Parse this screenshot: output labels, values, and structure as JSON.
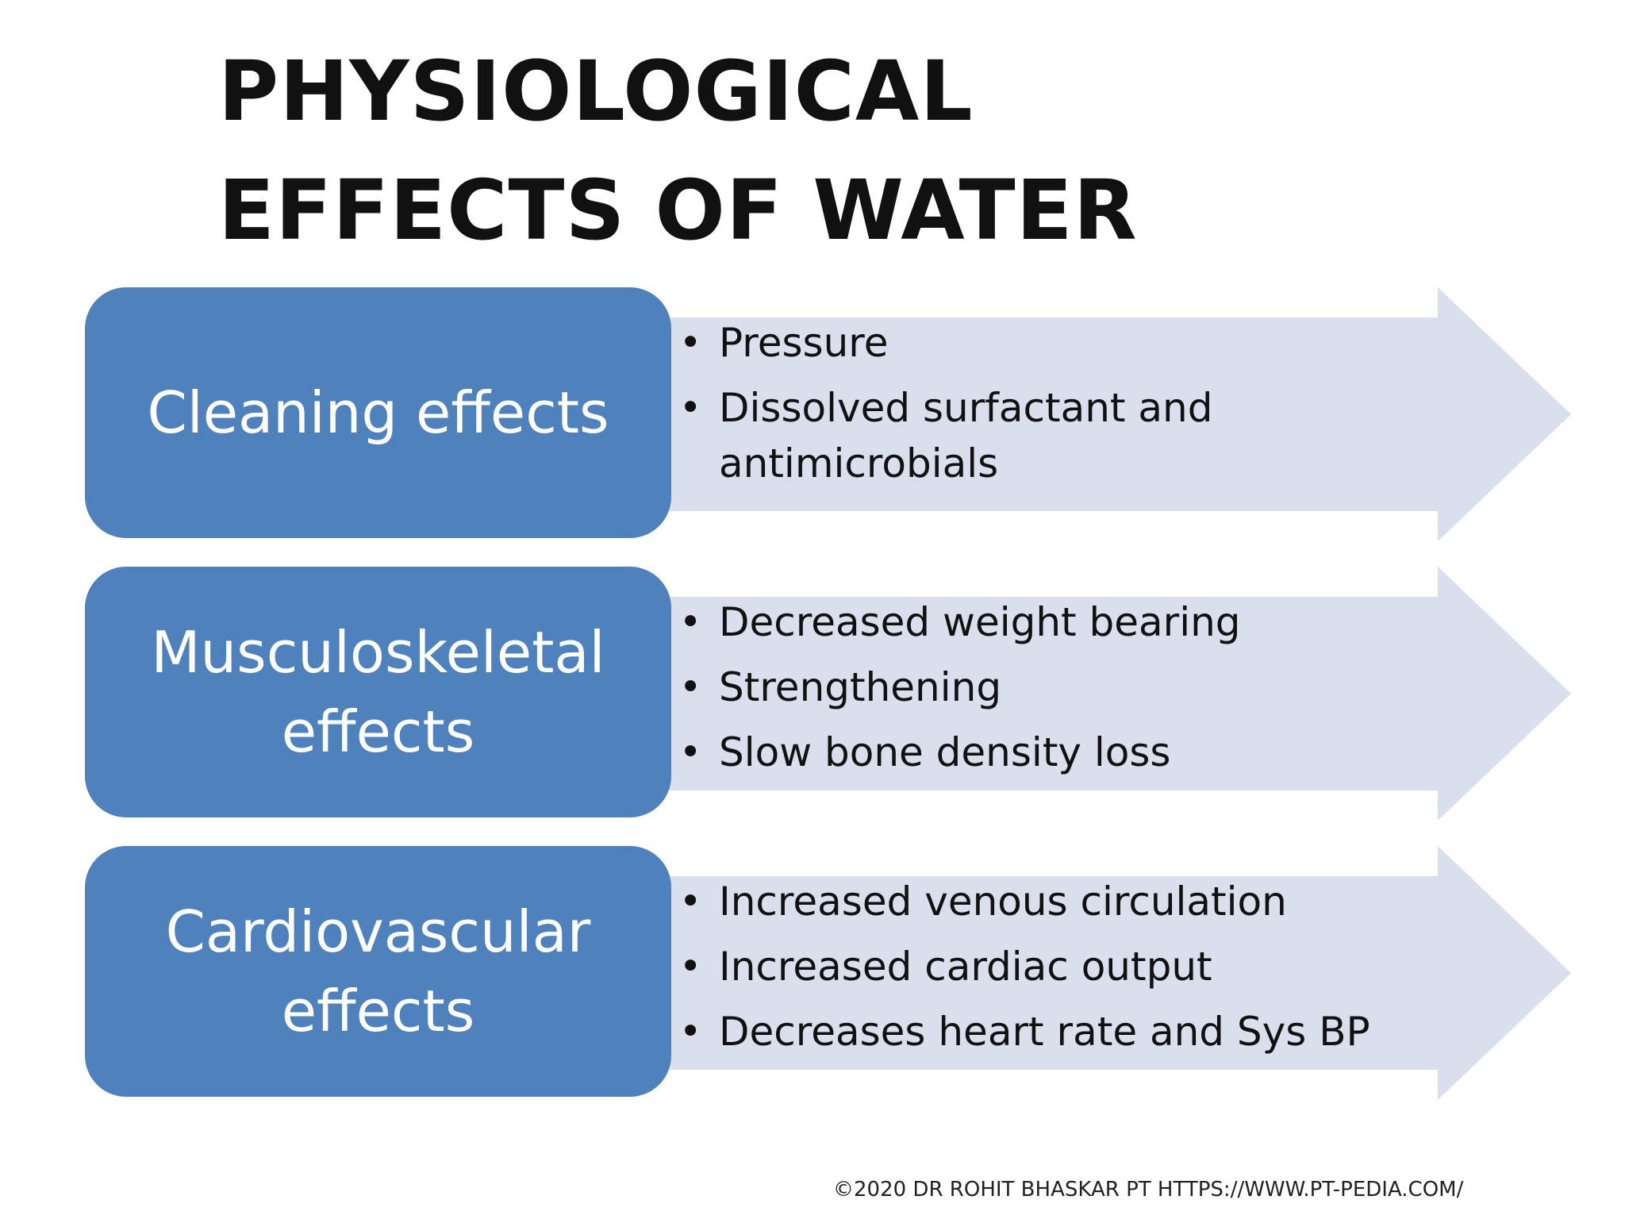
{
  "title": "PHYSIOLOGICAL EFFECTS OF WATER",
  "rows": [
    {
      "label": "Cleaning effects",
      "items": [
        "Pressure",
        "Dissolved surfactant and antimicrobials"
      ]
    },
    {
      "label": "Musculoskeletal effects",
      "items": [
        "Decreased weight bearing",
        "Strengthening",
        "Slow bone density loss"
      ]
    },
    {
      "label": "Cardiovascular effects",
      "items": [
        "Increased venous circulation",
        "Increased cardiac output",
        "Decreases heart rate and Sys BP"
      ]
    }
  ],
  "footer": "©2020 DR ROHIT BHASKAR PT HTTPS://WWW.PT-PEDIA.COM/",
  "colors": {
    "box": "#4f81bd",
    "arrow": "#d9dfec",
    "text": "#111111"
  }
}
